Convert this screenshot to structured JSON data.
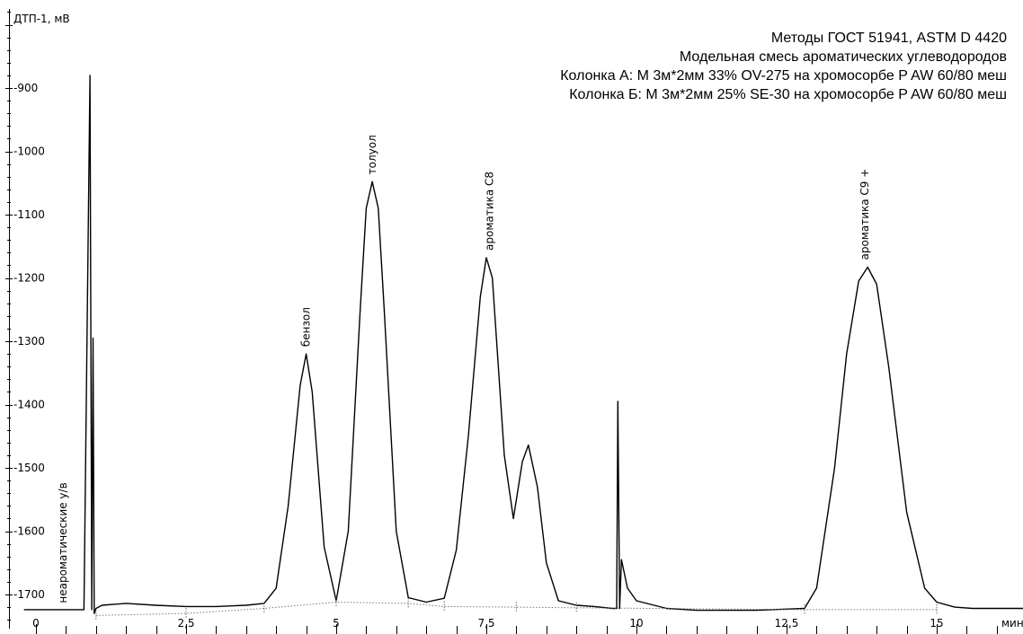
{
  "chart_data": {
    "type": "line",
    "title_lines": [
      "Методы ГОСТ 51941, ASTM D 4420",
      "Модельная смесь ароматических углеводородов",
      "Колонка А: М 3м*2мм 33% OV-275 на хромосорбе P AW 60/80 меш",
      "Колонка Б: М 3м*2мм 25% SE-30 на хромосорбе P AW 60/80 меш"
    ],
    "ylabel": "ДТП-1, мВ",
    "xlabel": "мин",
    "xlim": [
      -0.2,
      16.5
    ],
    "ylim": [
      -1755,
      -755
    ],
    "x_ticks": [
      {
        "value": 0,
        "label": "0"
      },
      {
        "value": 2.5,
        "label": "2,5"
      },
      {
        "value": 5,
        "label": "5"
      },
      {
        "value": 7.5,
        "label": "7,5"
      },
      {
        "value": 10,
        "label": "10"
      },
      {
        "value": 12.5,
        "label": "12,5"
      },
      {
        "value": 15,
        "label": "15"
      }
    ],
    "y_ticks": [
      {
        "value": -900,
        "label": "-900"
      },
      {
        "value": -1000,
        "label": "-1000"
      },
      {
        "value": -1100,
        "label": "-1100"
      },
      {
        "value": -1200,
        "label": "-1200"
      },
      {
        "value": -1300,
        "label": "-1300"
      },
      {
        "value": -1400,
        "label": "-1400"
      },
      {
        "value": -1500,
        "label": "-1500"
      },
      {
        "value": -1600,
        "label": "-1600"
      },
      {
        "value": -1700,
        "label": "-1700"
      }
    ],
    "peaks": [
      {
        "name": "неароматические у/в",
        "rt": 0.45,
        "height": -1725
      },
      {
        "name": "бензол",
        "rt": 4.5,
        "height": -1320
      },
      {
        "name": "толуол",
        "rt": 5.6,
        "height": -1048
      },
      {
        "name": "ароматика С8",
        "rt": 7.55,
        "height": -1168
      },
      {
        "name": "ароматика С9 +",
        "rt": 13.8,
        "height": -1183
      }
    ],
    "series": [
      {
        "x": [
          -0.2,
          0.3,
          0.8,
          0.9,
          0.93,
          0.95,
          0.97,
          1.0,
          1.1,
          1.5,
          2.0,
          2.5,
          3.0,
          3.5,
          3.8,
          4.0,
          4.2,
          4.4,
          4.5,
          4.6,
          4.8,
          5.0,
          5.2,
          5.4,
          5.5,
          5.6,
          5.7,
          5.8,
          6.0,
          6.2,
          6.5,
          6.8,
          7.0,
          7.2,
          7.4,
          7.5,
          7.6,
          7.8,
          7.95,
          8.1,
          8.2,
          8.35,
          8.5,
          8.7,
          9.0,
          9.3,
          9.6,
          9.67,
          9.69,
          9.72,
          9.75,
          9.85,
          10.0,
          10.5,
          11.0,
          12.0,
          12.8,
          13.0,
          13.3,
          13.5,
          13.7,
          13.85,
          14.0,
          14.2,
          14.5,
          14.8,
          15.0,
          15.3,
          15.6,
          16.0,
          16.5
        ],
        "y": [
          -1724,
          -1724,
          -1724,
          -880,
          -1724,
          -1295,
          -1730,
          -1722,
          -1717,
          -1714,
          -1717,
          -1719,
          -1719,
          -1717,
          -1714,
          -1690,
          -1560,
          -1370,
          -1320,
          -1380,
          -1625,
          -1710,
          -1600,
          -1250,
          -1090,
          -1048,
          -1090,
          -1250,
          -1600,
          -1705,
          -1712,
          -1706,
          -1630,
          -1450,
          -1230,
          -1168,
          -1200,
          -1480,
          -1580,
          -1490,
          -1464,
          -1530,
          -1650,
          -1710,
          -1717,
          -1719,
          -1722,
          -1722,
          -1395,
          -1722,
          -1645,
          -1690,
          -1710,
          -1722,
          -1725,
          -1725,
          -1722,
          -1690,
          -1500,
          -1320,
          -1205,
          -1183,
          -1210,
          -1340,
          -1570,
          -1690,
          -1712,
          -1720,
          -1722,
          -1722,
          -1722
        ]
      },
      {
        "name": "baseline",
        "x": [
          1.0,
          2.5,
          3.8,
          5.0,
          6.2,
          6.8,
          8.0,
          9.0,
          12.8,
          15.0
        ],
        "y": [
          -1733,
          -1730,
          -1722,
          -1712,
          -1714,
          -1719,
          -1720,
          -1721,
          -1724,
          -1724
        ]
      }
    ],
    "grid": false
  }
}
